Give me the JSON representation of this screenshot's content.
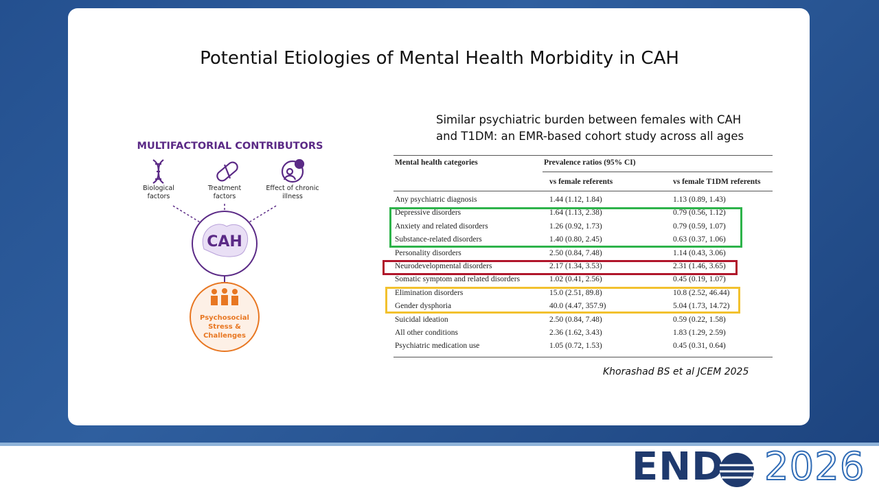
{
  "title": "Potential Etiologies of Mental Health Morbidity in CAH",
  "diagram": {
    "heading": "MULTIFACTORIAL CONTRIBUTORS",
    "factors": [
      "Biological factors",
      "Treatment factors",
      "Effect of chronic illness"
    ],
    "center": "CAH",
    "outcome": "Psychosocial Stress & Challenges"
  },
  "study": {
    "subtitle": "Similar psychiatric burden between females with CAH and T1DM: an EMR-based cohort study across all ages",
    "table": {
      "header": [
        "Mental health categories",
        "Prevalence ratios (95% CI)"
      ],
      "subheader": [
        "vs female referents",
        "vs female T1DM referents"
      ],
      "rows": [
        [
          "Any psychiatric diagnosis",
          "1.44 (1.12, 1.84)",
          "1.13 (0.89, 1.43)"
        ],
        [
          "Depressive disorders",
          "1.64 (1.13, 2.38)",
          "0.79 (0.56, 1.12)"
        ],
        [
          "Anxiety and related disorders",
          "1.26 (0.92, 1.73)",
          "0.79 (0.59, 1.07)"
        ],
        [
          "Substance-related disorders",
          "1.40 (0.80, 2.45)",
          "0.63 (0.37, 1.06)"
        ],
        [
          "Personality disorders",
          "2.50 (0.84, 7.48)",
          "1.14 (0.43, 3.06)"
        ],
        [
          "Neurodevelopmental disorders",
          "2.17 (1.34, 3.53)",
          "2.31 (1.46, 3.65)"
        ],
        [
          "Somatic symptom and related disorders",
          "1.02 (0.41, 2.56)",
          "0.45 (0.19, 1.07)"
        ],
        [
          "Elimination disorders",
          "15.0 (2.51, 89.8)",
          "10.8 (2.52, 46.44)"
        ],
        [
          "Gender dysphoria",
          "40.0 (4.47, 357.9)",
          "5.04 (1.73, 14.72)"
        ],
        [
          "Suicidal ideation",
          "2.50 (0.84, 7.48)",
          "0.59 (0.22, 1.58)"
        ],
        [
          "All other conditions",
          "2.36 (1.62, 3.43)",
          "1.83 (1.29, 2.59)"
        ],
        [
          "Psychiatric medication use",
          "1.05 (0.72, 1.53)",
          "0.45 (0.31, 0.64)"
        ]
      ]
    },
    "citation": "Khorashad BS et al JCEM 2025"
  },
  "logo": {
    "left": "END",
    "right": "2026"
  }
}
